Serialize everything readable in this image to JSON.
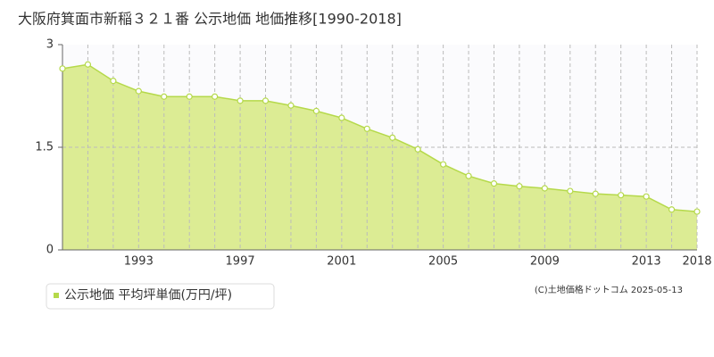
{
  "chart_data": {
    "type": "area",
    "title": "大阪府箕面市新稲３２１番 公示地価 地価推移[1990-2018]",
    "categories": [
      null,
      null,
      null,
      "1993",
      null,
      null,
      null,
      "1997",
      null,
      null,
      null,
      "2001",
      null,
      null,
      null,
      "2005",
      null,
      null,
      null,
      "2009",
      null,
      null,
      null,
      "2013",
      null,
      "2018"
    ],
    "series": [
      {
        "name": "公示地価 平均坪単価(万円/坪)",
        "color": "#b5d94a",
        "values": [
          2.65,
          2.71,
          2.47,
          2.32,
          2.24,
          2.24,
          2.24,
          2.18,
          2.18,
          2.11,
          2.03,
          1.93,
          1.77,
          1.64,
          1.47,
          1.25,
          1.08,
          0.97,
          0.93,
          0.9,
          0.86,
          0.82,
          0.8,
          0.78,
          0.59,
          0.56
        ]
      }
    ],
    "ylim": [
      0,
      3
    ],
    "yticks": [
      0,
      1.5,
      3
    ],
    "grid": true,
    "copyright": "(C)土地価格ドットコム 2025-05-13"
  }
}
